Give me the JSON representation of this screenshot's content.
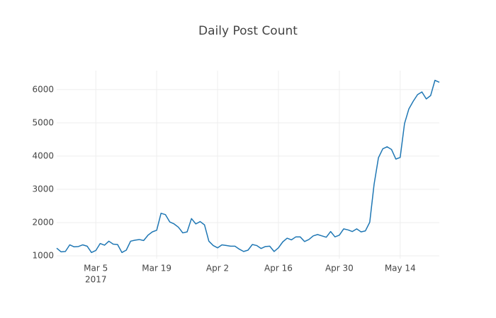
{
  "chart_data": {
    "type": "line",
    "title": "Daily Post Count",
    "x": [
      "2017-02-24",
      "2017-02-25",
      "2017-02-26",
      "2017-02-27",
      "2017-02-28",
      "2017-03-01",
      "2017-03-02",
      "2017-03-03",
      "2017-03-04",
      "2017-03-05",
      "2017-03-06",
      "2017-03-07",
      "2017-03-08",
      "2017-03-09",
      "2017-03-10",
      "2017-03-11",
      "2017-03-12",
      "2017-03-13",
      "2017-03-14",
      "2017-03-15",
      "2017-03-16",
      "2017-03-17",
      "2017-03-18",
      "2017-03-19",
      "2017-03-20",
      "2017-03-21",
      "2017-03-22",
      "2017-03-23",
      "2017-03-24",
      "2017-03-25",
      "2017-03-26",
      "2017-03-27",
      "2017-03-28",
      "2017-03-29",
      "2017-03-30",
      "2017-03-31",
      "2017-04-01",
      "2017-04-02",
      "2017-04-03",
      "2017-04-04",
      "2017-04-05",
      "2017-04-06",
      "2017-04-07",
      "2017-04-08",
      "2017-04-09",
      "2017-04-10",
      "2017-04-11",
      "2017-04-12",
      "2017-04-13",
      "2017-04-14",
      "2017-04-15",
      "2017-04-16",
      "2017-04-17",
      "2017-04-18",
      "2017-04-19",
      "2017-04-20",
      "2017-04-21",
      "2017-04-22",
      "2017-04-23",
      "2017-04-24",
      "2017-04-25",
      "2017-04-26",
      "2017-04-27",
      "2017-04-28",
      "2017-04-29",
      "2017-04-30",
      "2017-05-01",
      "2017-05-02",
      "2017-05-03",
      "2017-05-04",
      "2017-05-05",
      "2017-05-06",
      "2017-05-07",
      "2017-05-08",
      "2017-05-09",
      "2017-05-10",
      "2017-05-11",
      "2017-05-12",
      "2017-05-13",
      "2017-05-14",
      "2017-05-15",
      "2017-05-16",
      "2017-05-17",
      "2017-05-18",
      "2017-05-19",
      "2017-05-20",
      "2017-05-21",
      "2017-05-22",
      "2017-05-23"
    ],
    "values": [
      1230,
      1120,
      1130,
      1330,
      1270,
      1280,
      1330,
      1290,
      1100,
      1160,
      1370,
      1320,
      1440,
      1350,
      1340,
      1100,
      1170,
      1440,
      1470,
      1490,
      1460,
      1620,
      1720,
      1770,
      2280,
      2240,
      2020,
      1960,
      1860,
      1690,
      1720,
      2120,
      1960,
      2030,
      1930,
      1440,
      1310,
      1240,
      1330,
      1310,
      1290,
      1290,
      1200,
      1130,
      1170,
      1340,
      1310,
      1220,
      1280,
      1290,
      1130,
      1240,
      1420,
      1530,
      1480,
      1570,
      1570,
      1430,
      1490,
      1600,
      1640,
      1600,
      1560,
      1730,
      1570,
      1620,
      1810,
      1780,
      1730,
      1810,
      1720,
      1750,
      2010,
      3150,
      3950,
      4220,
      4280,
      4200,
      3910,
      3960,
      4980,
      5420,
      5650,
      5850,
      5930,
      5720,
      5820,
      6280,
      6220
    ],
    "color": "#1f77b4",
    "xlim": [
      "2017-02-24",
      "2017-05-23"
    ],
    "xticks": [
      {
        "value": "2017-03-05",
        "label": "Mar 5",
        "year": "2017"
      },
      {
        "value": "2017-03-19",
        "label": "Mar 19"
      },
      {
        "value": "2017-04-02",
        "label": "Apr 2"
      },
      {
        "value": "2017-04-16",
        "label": "Apr 16"
      },
      {
        "value": "2017-04-30",
        "label": "Apr 30"
      },
      {
        "value": "2017-05-14",
        "label": "May 14"
      }
    ],
    "ylim": [
      915,
      6570
    ],
    "yticks": [
      1000,
      2000,
      3000,
      4000,
      5000,
      6000
    ],
    "grid": true
  }
}
